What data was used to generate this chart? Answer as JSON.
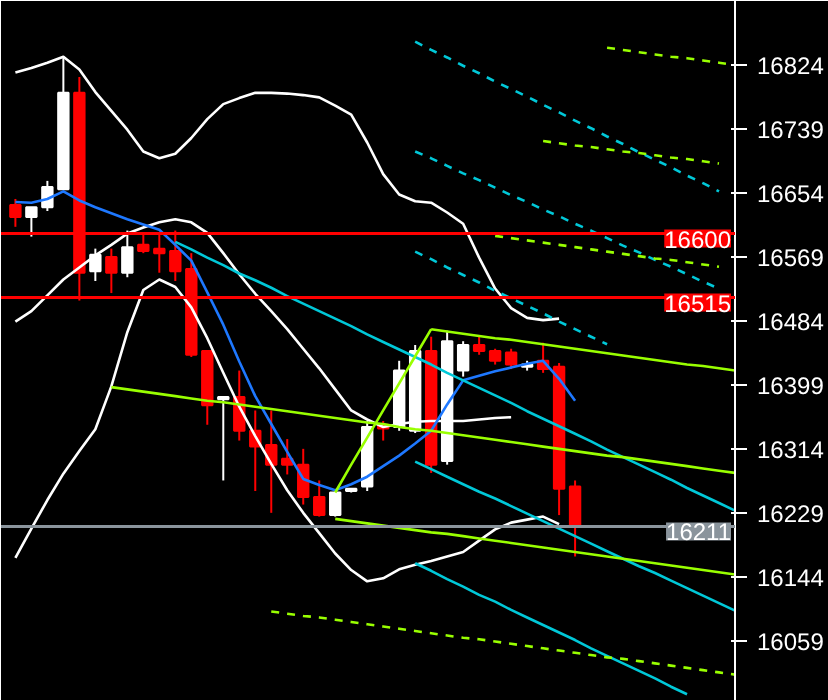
{
  "chart_data": {
    "type": "candlestick",
    "tick_labels": "y",
    "categories": [
      null,
      null,
      null,
      null,
      null,
      null,
      null,
      null,
      null,
      null,
      null,
      null,
      null,
      null,
      null,
      null,
      null,
      null,
      null,
      null,
      null,
      null,
      null,
      null,
      null,
      null,
      null,
      null,
      null,
      null,
      null,
      null,
      null,
      null,
      null,
      null,
      null,
      null,
      null,
      null,
      null,
      null,
      null,
      null,
      null,
      null
    ],
    "ohlc": [
      [
        16638,
        16646,
        16609,
        16622
      ],
      [
        16622,
        16635,
        16596,
        16635
      ],
      [
        16635,
        16670,
        16630,
        16662
      ],
      [
        16659,
        16835,
        16659,
        16787
      ],
      [
        16787,
        16808,
        16511,
        16548
      ],
      [
        16550,
        16580,
        16537,
        16572
      ],
      [
        16569,
        16580,
        16521,
        16548
      ],
      [
        16548,
        16604,
        16542,
        16582
      ],
      [
        16585,
        16601,
        16574,
        16577
      ],
      [
        16580,
        16601,
        16548,
        16574
      ],
      [
        16577,
        16604,
        16537,
        16550
      ],
      [
        16553,
        16574,
        16436,
        16439
      ],
      [
        16444,
        16444,
        16346,
        16372
      ],
      [
        16380,
        16383,
        16272,
        16383
      ],
      [
        16383,
        16418,
        16325,
        16338
      ],
      [
        16338,
        16365,
        16258,
        16317
      ],
      [
        16319,
        16365,
        16229,
        16293
      ],
      [
        16301,
        16327,
        16280,
        16293
      ],
      [
        16293,
        16314,
        16240,
        16250
      ],
      [
        16250,
        16272,
        16224,
        16226
      ],
      [
        16226,
        16258,
        16224,
        16256
      ],
      [
        16258,
        16261,
        16256,
        16261
      ],
      [
        16264,
        16351,
        16258,
        16343
      ],
      [
        16346,
        16351,
        16325,
        16341
      ],
      [
        16343,
        16431,
        16338,
        16418
      ],
      [
        16338,
        16452,
        16335,
        16444
      ],
      [
        16444,
        16463,
        16282,
        16293
      ],
      [
        16298,
        16471,
        16293,
        16457
      ],
      [
        16418,
        16457,
        16410,
        16452
      ],
      [
        16452,
        16463,
        16439,
        16444
      ],
      [
        16444,
        16447,
        16426,
        16431
      ],
      [
        16442,
        16447,
        16420,
        16426
      ],
      [
        16423,
        16431,
        16418,
        16426
      ],
      [
        16431,
        16455,
        16415,
        16420
      ],
      [
        16423,
        16428,
        16226,
        16261
      ],
      [
        16264,
        16272,
        16171,
        16211
      ],
      null,
      null,
      null,
      null,
      null,
      null,
      null,
      null,
      null,
      null
    ],
    "colors": [
      "#ff0000",
      "#ffffff",
      "#ffffff",
      "#ffffff",
      "#ff0000",
      "#ffffff",
      "#ff0000",
      "#ffffff",
      "#ff0000",
      "#ff0000",
      "#ff0000",
      "#ff0000",
      "#ff0000",
      "#ffffff",
      "#ff0000",
      "#ff0000",
      "#ff0000",
      "#ff0000",
      "#ff0000",
      "#ff0000",
      "#ffffff",
      "#ffffff",
      "#ffffff",
      "#ff0000",
      "#ffffff",
      "#ffffff",
      "#ff0000",
      "#ffffff",
      "#ffffff",
      "#ff0000",
      "#ff0000",
      "#ff0000",
      "#ffffff",
      "#ff0000",
      "#ff0000",
      "#ff0000",
      null,
      null,
      null,
      null,
      null,
      null,
      null,
      null,
      null,
      null
    ],
    "series": [
      {
        "type": "line",
        "color": "#ffffff",
        "values": [
          16814,
          16820,
          16827,
          16835,
          16818,
          16788,
          16763,
          16738,
          16709,
          16700,
          16706,
          16727,
          16752,
          16772,
          16780,
          16787,
          16787,
          16786,
          16784,
          16781,
          16770,
          16758,
          16721,
          16679,
          16652,
          16643,
          16641,
          16628,
          16613,
          16568,
          16527,
          16501,
          16488,
          16485,
          16487,
          null,
          null,
          null,
          null,
          null,
          null,
          null,
          null,
          null,
          null,
          null
        ]
      },
      {
        "type": "line",
        "color": "#ffffff",
        "values": [
          16483,
          16497,
          16518,
          16539,
          16555,
          16571,
          16585,
          16600,
          16608,
          16615,
          16619,
          16615,
          16601,
          16574,
          16546,
          16520,
          16497,
          16473,
          16447,
          16421,
          16393,
          16365,
          16353,
          16343,
          16347,
          16350,
          16351,
          16351,
          16351,
          16353,
          16355,
          16356,
          null,
          null,
          null,
          null,
          null,
          null,
          null,
          null,
          null,
          null,
          null,
          null,
          null,
          null
        ]
      },
      {
        "type": "line",
        "color": "#ffffff",
        "values": [
          16169,
          16208,
          16246,
          16281,
          16311,
          16340,
          16397,
          16469,
          16525,
          16539,
          16529,
          16502,
          16461,
          16415,
          16370,
          16331,
          16294,
          16259,
          16229,
          16202,
          16175,
          16153,
          16138,
          16142,
          16154,
          16160,
          16165,
          16171,
          16177,
          16192,
          16207,
          16216,
          16220,
          16224,
          16214,
          null,
          null,
          null,
          null,
          null,
          null,
          null,
          null,
          null,
          null,
          null
        ]
      },
      {
        "type": "line",
        "color": "#1e78ff",
        "values": [
          16642,
          16641,
          16646,
          16656,
          16644,
          16635,
          16627,
          16619,
          16612,
          16605,
          16585,
          16564,
          16522,
          16479,
          16430,
          16384,
          16347,
          16310,
          16274,
          16266,
          16259,
          16267,
          16277,
          16291,
          16305,
          16321,
          16338,
          16373,
          16405,
          16411,
          16417,
          16422,
          16427,
          16431,
          16407,
          16378,
          null,
          null,
          null,
          null,
          null,
          null,
          null,
          null,
          null,
          null
        ]
      },
      {
        "type": "line",
        "color": "#00c8d8",
        "values": [
          null,
          null,
          null,
          null,
          null,
          null,
          null,
          null,
          null,
          null,
          16589,
          16579,
          16568,
          16558,
          16547,
          16538,
          16528,
          16517,
          16507,
          16497,
          16487,
          16477,
          16466,
          16456,
          16446,
          16436,
          16426,
          16415,
          16405,
          16395,
          16385,
          16375,
          16364,
          16354,
          16344,
          16334,
          16324,
          16313,
          16303,
          16293,
          16283,
          16273,
          16262,
          16252,
          16242,
          16232
        ]
      },
      {
        "type": "line",
        "color": "#00c8d8",
        "values": [
          null,
          null,
          null,
          null,
          null,
          null,
          null,
          null,
          null,
          null,
          null,
          null,
          null,
          null,
          null,
          null,
          null,
          null,
          null,
          null,
          null,
          null,
          null,
          null,
          null,
          16297,
          16287,
          16277,
          16267,
          16257,
          16248,
          16238,
          16228,
          16218,
          16208,
          16198,
          16188,
          16178,
          16168,
          16158,
          16149,
          16139,
          16129,
          16119,
          16109,
          16099
        ]
      },
      {
        "type": "line",
        "color": "#00c8d8",
        "values": [
          null,
          null,
          null,
          null,
          null,
          null,
          null,
          null,
          null,
          null,
          null,
          null,
          null,
          null,
          null,
          null,
          null,
          null,
          null,
          null,
          null,
          null,
          null,
          null,
          null,
          16162,
          16152,
          16141,
          16131,
          16120,
          16111,
          16100,
          16090,
          16080,
          16070,
          16060,
          16049,
          16039,
          16029,
          16019,
          16009,
          15998,
          15988,
          null,
          null,
          null
        ]
      },
      {
        "type": "line",
        "color": "#99ff00",
        "values": [
          null,
          null,
          null,
          null,
          null,
          null,
          16396,
          16393,
          16390,
          16387,
          16384,
          16381,
          16378,
          16376,
          16373,
          16370,
          16367,
          16364,
          16361,
          16358,
          16355,
          16352,
          16349,
          16347,
          16343,
          16340,
          16338,
          16335,
          16332,
          16329,
          16326,
          16323,
          16320,
          16317,
          16314,
          16311,
          16308,
          16305,
          16303,
          16300,
          16297,
          16294,
          16291,
          16288,
          16285,
          16282
        ]
      },
      {
        "type": "line",
        "color": "#99ff00",
        "values": [
          null,
          null,
          null,
          null,
          null,
          null,
          null,
          null,
          null,
          null,
          null,
          null,
          null,
          null,
          null,
          null,
          null,
          null,
          null,
          null,
          16221,
          16218,
          16215,
          16212,
          16209,
          16206,
          16203,
          16201,
          16198,
          16195,
          16192,
          16189,
          16186,
          16183,
          16180,
          16177,
          16174,
          16171,
          16168,
          16165,
          16162,
          16159,
          16156,
          16153,
          16150,
          16147
        ]
      },
      {
        "type": "line",
        "color": "#99ff00",
        "values": [
          null,
          null,
          null,
          null,
          null,
          null,
          null,
          null,
          null,
          null,
          null,
          null,
          null,
          null,
          null,
          null,
          null,
          null,
          null,
          null,
          null,
          null,
          null,
          null,
          null,
          null,
          16473,
          16470,
          16467,
          16464,
          16461,
          16459,
          16456,
          16453,
          16450,
          16447,
          16444,
          16441,
          16438,
          16435,
          16432,
          16429,
          16426,
          16424,
          16421,
          16418
        ]
      },
      {
        "type": "line",
        "color": "#99ff00",
        "values": [
          null,
          null,
          null,
          null,
          null,
          null,
          null,
          null,
          null,
          null,
          null,
          null,
          null,
          null,
          null,
          null,
          null,
          null,
          null,
          null,
          16256,
          16293,
          16329,
          16365,
          16401,
          16437,
          16473,
          null,
          null,
          null,
          null,
          null,
          null,
          null,
          null,
          null,
          null,
          null,
          null,
          null,
          null,
          null,
          null,
          null,
          null,
          null
        ]
      },
      {
        "type": "line",
        "color": "#00c8d8",
        "line_style": "dashed",
        "values": [
          null,
          null,
          null,
          null,
          null,
          null,
          null,
          null,
          null,
          null,
          null,
          null,
          null,
          null,
          null,
          null,
          null,
          null,
          null,
          null,
          null,
          null,
          null,
          null,
          null,
          16855,
          16844,
          16834,
          16823,
          16813,
          16802,
          16792,
          16782,
          16771,
          16761,
          16750,
          16740,
          16729,
          16719,
          16708,
          16698,
          16688,
          16677,
          16667,
          16656,
          null
        ]
      },
      {
        "type": "line",
        "color": "#00c8d8",
        "line_style": "dashed",
        "values": [
          null,
          null,
          null,
          null,
          null,
          null,
          null,
          null,
          null,
          null,
          null,
          null,
          null,
          null,
          null,
          null,
          null,
          null,
          null,
          null,
          null,
          null,
          null,
          null,
          null,
          16709,
          16700,
          16690,
          16680,
          16671,
          16661,
          16651,
          16642,
          16632,
          16623,
          16613,
          16604,
          16594,
          16584,
          16575,
          16565,
          16556,
          16546,
          16536,
          16527,
          null
        ]
      },
      {
        "type": "line",
        "color": "#00c8d8",
        "line_style": "dashed",
        "values": [
          null,
          null,
          null,
          null,
          null,
          null,
          null,
          null,
          null,
          null,
          null,
          null,
          null,
          null,
          null,
          null,
          null,
          null,
          null,
          null,
          null,
          null,
          null,
          null,
          null,
          16576,
          16566,
          16555,
          16545,
          16535,
          16524,
          16514,
          16504,
          16494,
          16483,
          16473,
          16463,
          16453,
          null,
          null,
          null,
          null,
          null,
          null,
          null,
          null
        ]
      },
      {
        "type": "line",
        "color": "#99ff00",
        "line_style": "dashed",
        "values": [
          null,
          null,
          null,
          null,
          null,
          null,
          null,
          null,
          null,
          null,
          null,
          null,
          null,
          null,
          null,
          null,
          null,
          null,
          null,
          null,
          null,
          null,
          null,
          null,
          null,
          null,
          null,
          null,
          null,
          null,
          null,
          null,
          null,
          null,
          null,
          null,
          null,
          16847,
          16844,
          16841,
          16838,
          16835,
          16833,
          16830,
          16827,
          16824
        ]
      },
      {
        "type": "line",
        "color": "#99ff00",
        "line_style": "dashed",
        "values": [
          null,
          null,
          null,
          null,
          null,
          null,
          null,
          null,
          null,
          null,
          null,
          null,
          null,
          null,
          null,
          null,
          null,
          null,
          null,
          null,
          null,
          null,
          null,
          null,
          null,
          null,
          null,
          null,
          null,
          null,
          null,
          null,
          null,
          16723,
          16720,
          16717,
          16715,
          16712,
          16709,
          16707,
          16704,
          16701,
          16699,
          16696,
          16693,
          null
        ]
      },
      {
        "type": "line",
        "color": "#99ff00",
        "line_style": "dashed",
        "values": [
          null,
          null,
          null,
          null,
          null,
          null,
          null,
          null,
          null,
          null,
          null,
          null,
          null,
          null,
          null,
          null,
          null,
          null,
          null,
          null,
          null,
          null,
          null,
          null,
          null,
          null,
          null,
          null,
          null,
          null,
          16597,
          16594,
          16591,
          16588,
          16585,
          16582,
          16579,
          16576,
          16573,
          16570,
          16567,
          16565,
          16562,
          16559,
          16556,
          null
        ]
      },
      {
        "type": "line",
        "color": "#99ff00",
        "line_style": "dashed",
        "values": [
          null,
          null,
          null,
          null,
          null,
          null,
          null,
          null,
          null,
          null,
          null,
          null,
          null,
          null,
          null,
          null,
          16098,
          16095,
          16092,
          16090,
          16087,
          16084,
          16081,
          16078,
          16075,
          16072,
          16069,
          16066,
          16063,
          16061,
          16058,
          16055,
          16052,
          16049,
          16046,
          16043,
          16040,
          16037,
          16035,
          16032,
          16029,
          16026,
          16023,
          16020,
          16017,
          16014
        ]
      }
    ],
    "ref_lines": [
      {
        "axis": "y",
        "value": 16600,
        "label": "16600",
        "color": "#ff0000"
      },
      {
        "axis": "y",
        "value": 16515,
        "label": "16515",
        "color": "#ff0000"
      },
      {
        "axis": "y",
        "value": 16211,
        "label": "16211",
        "color": "#8a949c"
      }
    ],
    "ylim": [
      15979,
      16909
    ],
    "yticks": [
      16059,
      16144,
      16229,
      16314,
      16399,
      16484,
      16569,
      16654,
      16739,
      16824
    ],
    "grid": false
  }
}
